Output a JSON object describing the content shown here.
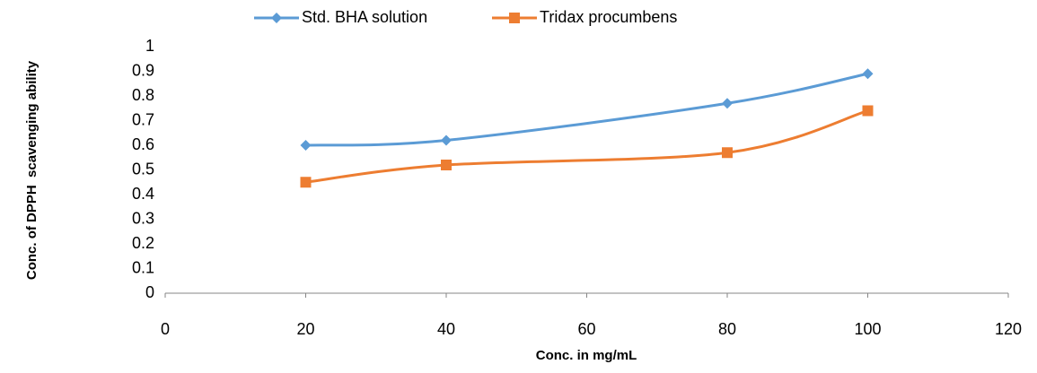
{
  "chart_data": {
    "type": "line",
    "x_label": "Conc. in mg/mL",
    "y_label": "Conc. of DPPH  scavenging ability",
    "x": [
      20,
      40,
      80,
      100
    ],
    "series": [
      {
        "name": "Std. BHA solution",
        "color": "#5b9bd5",
        "marker": "diamond",
        "values": [
          0.6,
          0.62,
          0.77,
          0.89
        ]
      },
      {
        "name": "Tridax procumbens",
        "color": "#ed7d31",
        "marker": "square",
        "values": [
          0.45,
          0.52,
          0.57,
          0.74
        ]
      }
    ],
    "xlim": [
      0,
      120
    ],
    "xticks": [
      0,
      20,
      40,
      60,
      80,
      100,
      120
    ],
    "ylim": [
      0,
      1
    ],
    "yticks": [
      0,
      0.1,
      0.2,
      0.3,
      0.4,
      0.5,
      0.6,
      0.7,
      0.8,
      0.9,
      1
    ],
    "grid": false,
    "legend": "top",
    "smooth": true
  }
}
